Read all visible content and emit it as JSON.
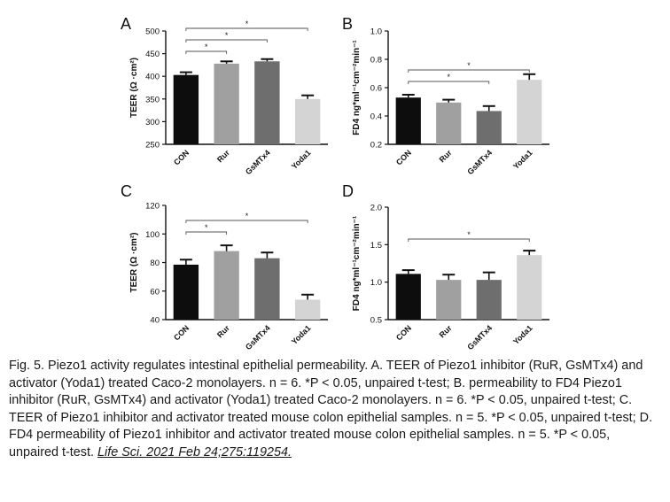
{
  "chart_data": [
    {
      "panel": "A",
      "type": "bar",
      "categories": [
        "CON",
        "Rur",
        "GsMTx4",
        "Yoda1"
      ],
      "values": [
        403,
        428,
        433,
        350
      ],
      "errors": [
        6,
        5,
        5,
        8
      ],
      "colors": [
        "#0d0d0d",
        "#a0a0a0",
        "#6e6e6e",
        "#d4d4d4"
      ],
      "ylabel": "TEER (Ω ·cm²)",
      "ylim": [
        250,
        500
      ],
      "yticks": [
        250,
        300,
        350,
        400,
        450,
        500
      ],
      "ytick_labels": [
        "250",
        "300",
        "350",
        "400",
        "450",
        "500"
      ],
      "significance": [
        {
          "from": 0,
          "to": 1,
          "label": "*"
        },
        {
          "from": 0,
          "to": 2,
          "label": "*"
        },
        {
          "from": 0,
          "to": 3,
          "label": "*"
        }
      ]
    },
    {
      "panel": "B",
      "type": "bar",
      "categories": [
        "CON",
        "Rur",
        "GsMTx4",
        "Yoda1"
      ],
      "values": [
        0.53,
        0.495,
        0.435,
        0.655
      ],
      "errors": [
        0.02,
        0.02,
        0.035,
        0.04
      ],
      "colors": [
        "#0d0d0d",
        "#a0a0a0",
        "#6e6e6e",
        "#d4d4d4"
      ],
      "ylabel": "FD4 ng*ml⁻¹cm⁻²min⁻¹",
      "ylim": [
        0.2,
        1.0
      ],
      "yticks": [
        0.2,
        0.4,
        0.6,
        0.8,
        1.0
      ],
      "ytick_labels": [
        "0.2",
        "0.4",
        "0.6",
        "0.8",
        "1.0"
      ],
      "significance": [
        {
          "from": 0,
          "to": 2,
          "label": "*"
        },
        {
          "from": 0,
          "to": 3,
          "label": "*"
        }
      ]
    },
    {
      "panel": "C",
      "type": "bar",
      "categories": [
        "CON",
        "Rur",
        "GsMTx4",
        "Yoda1"
      ],
      "values": [
        78.5,
        88,
        83,
        54
      ],
      "errors": [
        3.5,
        4,
        4,
        3.5
      ],
      "colors": [
        "#0d0d0d",
        "#a0a0a0",
        "#6e6e6e",
        "#d4d4d4"
      ],
      "ylabel": "TEER (Ω ·cm²)",
      "ylim": [
        40,
        120
      ],
      "yticks": [
        40,
        60,
        80,
        100,
        120
      ],
      "ytick_labels": [
        "40",
        "60",
        "80",
        "100",
        "120"
      ],
      "significance": [
        {
          "from": 0,
          "to": 1,
          "label": "*"
        },
        {
          "from": 0,
          "to": 3,
          "label": "*"
        }
      ]
    },
    {
      "panel": "D",
      "type": "bar",
      "categories": [
        "CON",
        "Rur",
        "GsMTx4",
        "Yoda1"
      ],
      "values": [
        1.11,
        1.03,
        1.03,
        1.36
      ],
      "errors": [
        0.05,
        0.07,
        0.1,
        0.06
      ],
      "colors": [
        "#0d0d0d",
        "#a0a0a0",
        "#6e6e6e",
        "#d4d4d4"
      ],
      "ylabel": "FD4 ng*ml⁻¹cm⁻²min⁻¹",
      "ylim": [
        0.5,
        2.0
      ],
      "yticks": [
        0.5,
        1.0,
        1.5,
        2.0
      ],
      "ytick_labels": [
        "0.5",
        "1.0",
        "1.5",
        "2.0"
      ],
      "significance": [
        {
          "from": 0,
          "to": 3,
          "label": "*"
        }
      ]
    }
  ],
  "caption": {
    "text": "Fig. 5. Piezo1 activity regulates intestinal epithelial permeability. A. TEER of Piezo1 inhibitor (RuR, GsMTx4) and activator (Yoda1) treated Caco-2 monolayers. n = 6. *P < 0.05, unpaired t-test; B. permeability to FD4 Piezo1 inhibitor (RuR, GsMTx4) and activator (Yoda1) treated Caco-2 monolayers. n = 6. *P < 0.05, unpaired t-test; C. TEER of Piezo1 inhibitor and activator treated mouse colon epithelial samples. n = 5. *P < 0.05, unpaired t-test; D. FD4 permeability of Piezo1 inhibitor and activator treated mouse colon epithelial samples. n = 5. *P < 0.05, unpaired t-test.",
    "citation": "Life Sci. 2021 Feb 24;275:119254."
  }
}
